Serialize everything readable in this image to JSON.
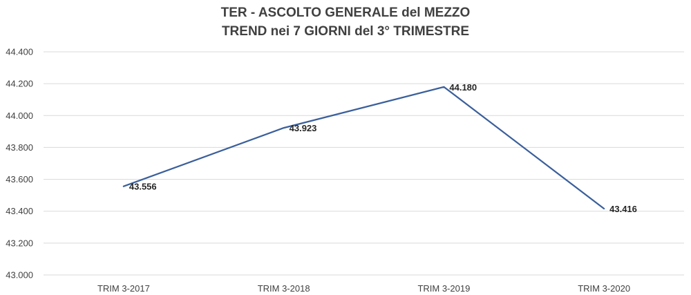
{
  "chart_data": {
    "type": "line",
    "title": "TER - ASCOLTO GENERALE del MEZZO",
    "subtitle": "TREND nei 7 GIORNI del 3° TRIMESTRE",
    "xlabel": "",
    "ylabel": "",
    "categories": [
      "TRIM 3-2017",
      "TRIM 3-2018",
      "TRIM 3-2019",
      "TRIM 3-2020"
    ],
    "series": [
      {
        "values": [
          43556,
          43923,
          44180,
          43416
        ],
        "data_labels": [
          "43.556",
          "43.923",
          "44.180",
          "43.416"
        ],
        "color": "#3a5f9b"
      }
    ],
    "ylim": [
      43000,
      44400
    ],
    "yticks": [
      43000,
      43200,
      43400,
      43600,
      43800,
      44000,
      44200,
      44400
    ],
    "ytick_labels": [
      "43.000",
      "43.200",
      "43.400",
      "43.600",
      "43.800",
      "44.000",
      "44.200",
      "44.400"
    ],
    "grid": true,
    "legend": "none"
  }
}
